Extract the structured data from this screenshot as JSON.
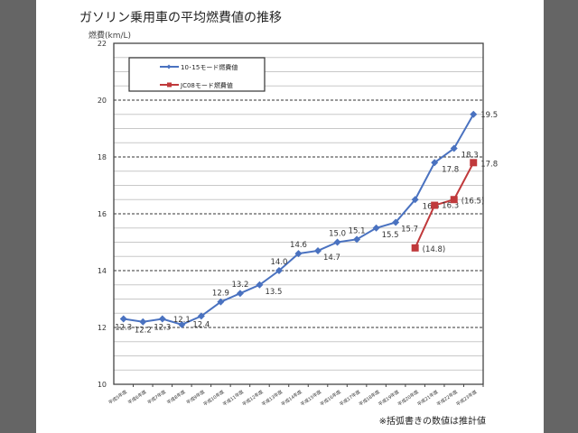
{
  "chart_data": {
    "type": "line",
    "title": "ガソリン乗用車の平均燃費値の推移",
    "ylabel": "燃費(km/L)",
    "xlabel": "",
    "ylim": [
      10,
      22
    ],
    "yticks": [
      "10",
      "12",
      "14",
      "16",
      "18",
      "20",
      "22"
    ],
    "grid": true,
    "legend_position": "top-left",
    "categories": [
      "平成5年度",
      "平成6年度",
      "平成7年度",
      "平成8年度",
      "平成9年度",
      "平成10年度",
      "平成11年度",
      "平成12年度",
      "平成13年度",
      "平成14年度",
      "平成15年度",
      "平成16年度",
      "平成17年度",
      "平成18年度",
      "平成19年度",
      "平成20年度",
      "平成21年度",
      "平成22年度",
      "平成23年度"
    ],
    "series": [
      {
        "name": "10･15モード燃費値",
        "color": "#4a72c0",
        "marker": "diamond",
        "values": [
          12.3,
          12.2,
          12.3,
          12.1,
          12.4,
          12.9,
          13.2,
          13.5,
          14.0,
          14.6,
          14.7,
          15.0,
          15.1,
          15.5,
          15.7,
          16.5,
          17.8,
          18.3,
          19.5
        ],
        "labels": [
          "12.3",
          "12.2",
          "12.3",
          "12.1",
          "12.4",
          "12.9",
          "13.2",
          "13.5",
          "14.0",
          "14.6",
          "14.7",
          "15.0",
          "15.1",
          "15.5",
          "15.7",
          "16.5",
          "17.8",
          "18.3",
          "19.5"
        ]
      },
      {
        "name": "JC08モード燃費値",
        "color": "#c0393b",
        "marker": "square",
        "values": [
          null,
          null,
          null,
          null,
          null,
          null,
          null,
          null,
          null,
          null,
          null,
          null,
          null,
          null,
          null,
          14.8,
          16.3,
          16.5,
          17.8
        ],
        "labels": [
          null,
          null,
          null,
          null,
          null,
          null,
          null,
          null,
          null,
          null,
          null,
          null,
          null,
          null,
          null,
          "(14.8)",
          "16.3",
          "(16.5)",
          "17.8"
        ]
      }
    ],
    "note": "※括弧書きの数値は推計値"
  }
}
